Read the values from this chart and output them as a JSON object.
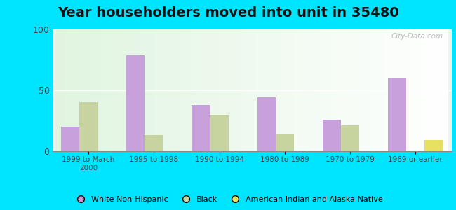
{
  "title": "Year householders moved into unit in 35480",
  "categories": [
    "1999 to March\n2000",
    "1995 to 1998",
    "1990 to 1994",
    "1980 to 1989",
    "1970 to 1979",
    "1969 or earlier"
  ],
  "white_non_hispanic": [
    20,
    79,
    38,
    44,
    26,
    60
  ],
  "black": [
    40,
    13,
    30,
    14,
    21,
    0
  ],
  "american_indian": [
    0,
    0,
    0,
    0,
    0,
    9
  ],
  "bar_width": 0.28,
  "colors": {
    "white_non_hispanic": "#c8a0dc",
    "black": "#c8d4a0",
    "american_indian": "#e8e060"
  },
  "ylim": [
    0,
    100
  ],
  "yticks": [
    0,
    50,
    100
  ],
  "outer_background": "#00e5ff",
  "plot_bg_color": "#eef5e8",
  "legend_labels": [
    "White Non-Hispanic",
    "Black",
    "American Indian and Alaska Native"
  ],
  "legend_marker_colors": [
    "#d090c8",
    "#c8d4a0",
    "#e8e060"
  ],
  "watermark": "City-Data.com",
  "title_fontsize": 14,
  "tick_fontsize": 7.5,
  "ytick_fontsize": 9
}
